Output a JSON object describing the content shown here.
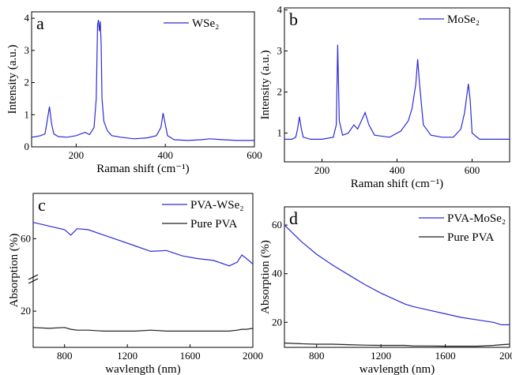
{
  "chart_data": [
    {
      "type": "line",
      "label": "a",
      "ylabel": "Intensity (a.u.)",
      "xlabel": "Raman shift (cm⁻¹)",
      "xlim": [
        100,
        600
      ],
      "xticks": [
        200,
        400,
        600
      ],
      "ylim": [
        0,
        4.2
      ],
      "yticks": [
        0,
        1,
        2,
        3,
        4
      ],
      "grid": false,
      "legend": "upper right",
      "x": [
        100,
        110,
        120,
        130,
        135,
        140,
        145,
        150,
        160,
        180,
        200,
        210,
        220,
        230,
        240,
        245,
        248,
        250,
        252,
        254,
        256,
        258,
        262,
        270,
        280,
        300,
        330,
        360,
        380,
        390,
        395,
        400,
        405,
        420,
        450,
        480,
        500,
        530,
        560,
        600
      ],
      "series": [
        {
          "name": "WSe₂",
          "color": "#2b2bd9",
          "values": [
            0.3,
            0.32,
            0.35,
            0.4,
            0.8,
            1.25,
            0.7,
            0.4,
            0.32,
            0.3,
            0.35,
            0.4,
            0.45,
            0.38,
            0.6,
            1.5,
            3.8,
            3.95,
            3.6,
            3.9,
            3.2,
            1.5,
            0.8,
            0.5,
            0.35,
            0.3,
            0.25,
            0.28,
            0.35,
            0.6,
            1.05,
            0.7,
            0.35,
            0.22,
            0.2,
            0.22,
            0.25,
            0.22,
            0.2,
            0.2
          ]
        }
      ]
    },
    {
      "type": "line",
      "label": "b",
      "ylabel": "Intensity (a.u.)",
      "xlabel": "Raman shift (cm⁻¹)",
      "xlim": [
        100,
        700
      ],
      "xticks": [
        200,
        400,
        600
      ],
      "ylim": [
        0.3,
        4.05
      ],
      "yticks": [
        1,
        2,
        3,
        4
      ],
      "grid": false,
      "legend": "upper right",
      "x": [
        100,
        120,
        130,
        135,
        140,
        145,
        150,
        170,
        200,
        230,
        238,
        242,
        246,
        255,
        270,
        285,
        295,
        305,
        315,
        325,
        340,
        380,
        410,
        430,
        440,
        450,
        455,
        460,
        470,
        490,
        520,
        550,
        570,
        580,
        590,
        595,
        600,
        620,
        660,
        700
      ],
      "series": [
        {
          "name": "MoSe₂",
          "color": "#2b2bd9",
          "values": [
            0.85,
            0.85,
            0.9,
            1.1,
            1.4,
            1.1,
            0.9,
            0.85,
            0.85,
            0.9,
            1.2,
            3.15,
            1.3,
            0.95,
            1.0,
            1.2,
            1.1,
            1.3,
            1.5,
            1.2,
            0.95,
            0.9,
            1.05,
            1.3,
            1.6,
            2.2,
            2.8,
            2.2,
            1.2,
            0.95,
            0.9,
            0.9,
            1.1,
            1.5,
            2.2,
            1.8,
            1.0,
            0.85,
            0.85,
            0.85
          ]
        }
      ]
    },
    {
      "type": "line",
      "label": "c",
      "ylabel": "Absorption (%)",
      "xlabel": "wavlength (nm)",
      "xlim": [
        600,
        2000
      ],
      "xticks": [
        800,
        1200,
        1600,
        2000
      ],
      "ylim": [
        0,
        85
      ],
      "yticks": [
        20,
        60
      ],
      "grid": false,
      "legend": "upper right",
      "x": [
        600,
        700,
        800,
        840,
        880,
        950,
        1050,
        1150,
        1250,
        1350,
        1450,
        1550,
        1650,
        1750,
        1850,
        1900,
        1930,
        1960,
        2000
      ],
      "series": [
        {
          "name": "PVA-WSe₂",
          "color": "#2b2bd9",
          "values": [
            69,
            67,
            65,
            62,
            65.5,
            65,
            62,
            59,
            56,
            53,
            53.5,
            50.5,
            49,
            48,
            45,
            47,
            51,
            49,
            46
          ]
        },
        {
          "name": "Pure PVA",
          "color": "#222222",
          "values": [
            11,
            10.5,
            11,
            10,
            9.5,
            9.5,
            9,
            9,
            9,
            9.5,
            9,
            9,
            9,
            9,
            9,
            9.5,
            10,
            10,
            10.5
          ]
        }
      ]
    },
    {
      "type": "line",
      "label": "d",
      "ylabel": "Absorption (%)",
      "xlabel": "wavlength (nm)",
      "xlim": [
        600,
        2000
      ],
      "xticks": [
        800,
        1200,
        1600,
        2000
      ],
      "ylim": [
        9.7,
        67.5
      ],
      "yticks": [
        20,
        40,
        60
      ],
      "grid": false,
      "legend": "upper right",
      "x": [
        600,
        700,
        800,
        900,
        1000,
        1100,
        1200,
        1300,
        1350,
        1400,
        1500,
        1600,
        1700,
        1800,
        1900,
        1950,
        2000
      ],
      "series": [
        {
          "name": "PVA-MoSe₂",
          "color": "#2b2bd9",
          "values": [
            60,
            53.5,
            48,
            43.5,
            39.5,
            35.5,
            32,
            29,
            27.5,
            26.5,
            25,
            23.5,
            22,
            21,
            20,
            19,
            19
          ]
        },
        {
          "name": "Pure PVA",
          "color": "#222222",
          "values": [
            11.5,
            11.2,
            11,
            11,
            10.8,
            10.6,
            10.5,
            10.5,
            10.5,
            10.3,
            10.3,
            10.2,
            10.2,
            10.2,
            10.5,
            10.8,
            11
          ]
        }
      ]
    }
  ]
}
